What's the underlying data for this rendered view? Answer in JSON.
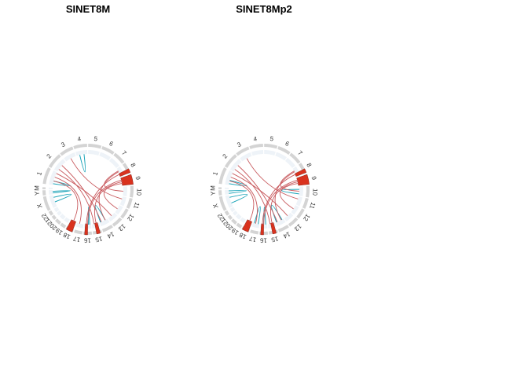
{
  "chart_data": [
    {
      "type": "circos",
      "title": "SINET8M",
      "chromosomes": [
        "1",
        "2",
        "3",
        "4",
        "5",
        "6",
        "7",
        "8",
        "9",
        "10",
        "11",
        "12",
        "13",
        "14",
        "15",
        "16",
        "17",
        "18",
        "19",
        "20",
        "21",
        "22",
        "X",
        "Y",
        "M"
      ],
      "colors": {
        "ideogram": "#d4d4d4",
        "inner_track": "#eef3f8",
        "highlight": "#d9321e",
        "link_intra": "#1aa3b8",
        "link_inter": "#c85a5e"
      },
      "highlights": [
        {
          "chrom": "8",
          "start": 0.6,
          "end": 0.95
        },
        {
          "chrom": "9",
          "start": 0.05,
          "end": 0.95
        },
        {
          "chrom": "15",
          "start": 0.2,
          "end": 0.6
        },
        {
          "chrom": "16",
          "start": 0.5,
          "end": 0.85
        },
        {
          "chrom": "18",
          "start": 0.1,
          "end": 0.9
        }
      ],
      "intra_links": [
        {
          "chrom": "X",
          "start": 0.4,
          "end": 0.8
        },
        {
          "chrom": "Y",
          "start": 0.3,
          "end": 0.7
        },
        {
          "chrom": "1",
          "start": 0.1,
          "end": 0.3
        },
        {
          "chrom": "4",
          "start": 0.3,
          "end": 0.7
        },
        {
          "chrom": "14",
          "start": 0.3,
          "end": 0.9
        },
        {
          "chrom": "16",
          "start": 0.2,
          "end": 0.4
        }
      ],
      "inter_links": [
        {
          "from": "18",
          "from_pos": 0.5,
          "to": "1",
          "to_pos": 0.3
        },
        {
          "from": "17",
          "from_pos": 0.6,
          "to": "1",
          "to_pos": 0.6
        },
        {
          "from": "16",
          "from_pos": 0.5,
          "to": "9",
          "to_pos": 0.3
        },
        {
          "from": "16",
          "from_pos": 0.7,
          "to": "8",
          "to_pos": 0.7
        },
        {
          "from": "15",
          "from_pos": 0.4,
          "to": "9",
          "to_pos": 0.5
        },
        {
          "from": "15",
          "from_pos": 0.7,
          "to": "2",
          "to_pos": 0.2
        },
        {
          "from": "14",
          "from_pos": 0.3,
          "to": "8",
          "to_pos": 0.4
        },
        {
          "from": "14",
          "from_pos": 0.8,
          "to": "2",
          "to_pos": 0.6
        },
        {
          "from": "13",
          "from_pos": 0.5,
          "to": "1",
          "to_pos": 0.9
        },
        {
          "from": "12",
          "from_pos": 0.5,
          "to": "9",
          "to_pos": 0.7
        },
        {
          "from": "11",
          "from_pos": 0.3,
          "to": "3",
          "to_pos": 0.5
        },
        {
          "from": "10",
          "from_pos": 0.5,
          "to": "8",
          "to_pos": 0.3
        }
      ]
    },
    {
      "type": "circos",
      "title": "SINET8Mp2",
      "chromosomes": [
        "1",
        "2",
        "3",
        "4",
        "5",
        "6",
        "7",
        "8",
        "9",
        "10",
        "11",
        "12",
        "13",
        "14",
        "15",
        "16",
        "17",
        "18",
        "19",
        "20",
        "21",
        "22",
        "X",
        "Y",
        "M"
      ],
      "colors": {
        "ideogram": "#d4d4d4",
        "inner_track": "#eef3f8",
        "highlight": "#d9321e",
        "link_intra": "#1aa3b8",
        "link_inter": "#c85a5e"
      },
      "highlights": [
        {
          "chrom": "8",
          "start": 0.6,
          "end": 0.95
        },
        {
          "chrom": "9",
          "start": 0.05,
          "end": 0.95
        },
        {
          "chrom": "15",
          "start": 0.2,
          "end": 0.6
        },
        {
          "chrom": "16",
          "start": 0.5,
          "end": 0.85
        },
        {
          "chrom": "18",
          "start": 0.1,
          "end": 0.9
        }
      ],
      "intra_links": [
        {
          "chrom": "X",
          "start": 0.3,
          "end": 0.8
        },
        {
          "chrom": "Y",
          "start": 0.2,
          "end": 0.8
        },
        {
          "chrom": "1",
          "start": 0.1,
          "end": 0.35
        },
        {
          "chrom": "17",
          "start": 0.2,
          "end": 0.8
        },
        {
          "chrom": "14",
          "start": 0.2,
          "end": 0.9
        },
        {
          "chrom": "16",
          "start": 0.2,
          "end": 0.5
        },
        {
          "chrom": "10",
          "start": 0.3,
          "end": 0.8
        }
      ],
      "inter_links": [
        {
          "from": "18",
          "from_pos": 0.5,
          "to": "1",
          "to_pos": 0.3
        },
        {
          "from": "17",
          "from_pos": 0.6,
          "to": "1",
          "to_pos": 0.6
        },
        {
          "from": "16",
          "from_pos": 0.5,
          "to": "9",
          "to_pos": 0.3
        },
        {
          "from": "16",
          "from_pos": 0.7,
          "to": "8",
          "to_pos": 0.7
        },
        {
          "from": "15",
          "from_pos": 0.4,
          "to": "9",
          "to_pos": 0.5
        },
        {
          "from": "15",
          "from_pos": 0.7,
          "to": "2",
          "to_pos": 0.2
        },
        {
          "from": "14",
          "from_pos": 0.3,
          "to": "8",
          "to_pos": 0.4
        },
        {
          "from": "14",
          "from_pos": 0.8,
          "to": "2",
          "to_pos": 0.6
        },
        {
          "from": "13",
          "from_pos": 0.5,
          "to": "1",
          "to_pos": 0.9
        },
        {
          "from": "12",
          "from_pos": 0.5,
          "to": "9",
          "to_pos": 0.7
        },
        {
          "from": "11",
          "from_pos": 0.3,
          "to": "3",
          "to_pos": 0.5
        },
        {
          "from": "10",
          "from_pos": 0.5,
          "to": "8",
          "to_pos": 0.3
        }
      ]
    }
  ]
}
